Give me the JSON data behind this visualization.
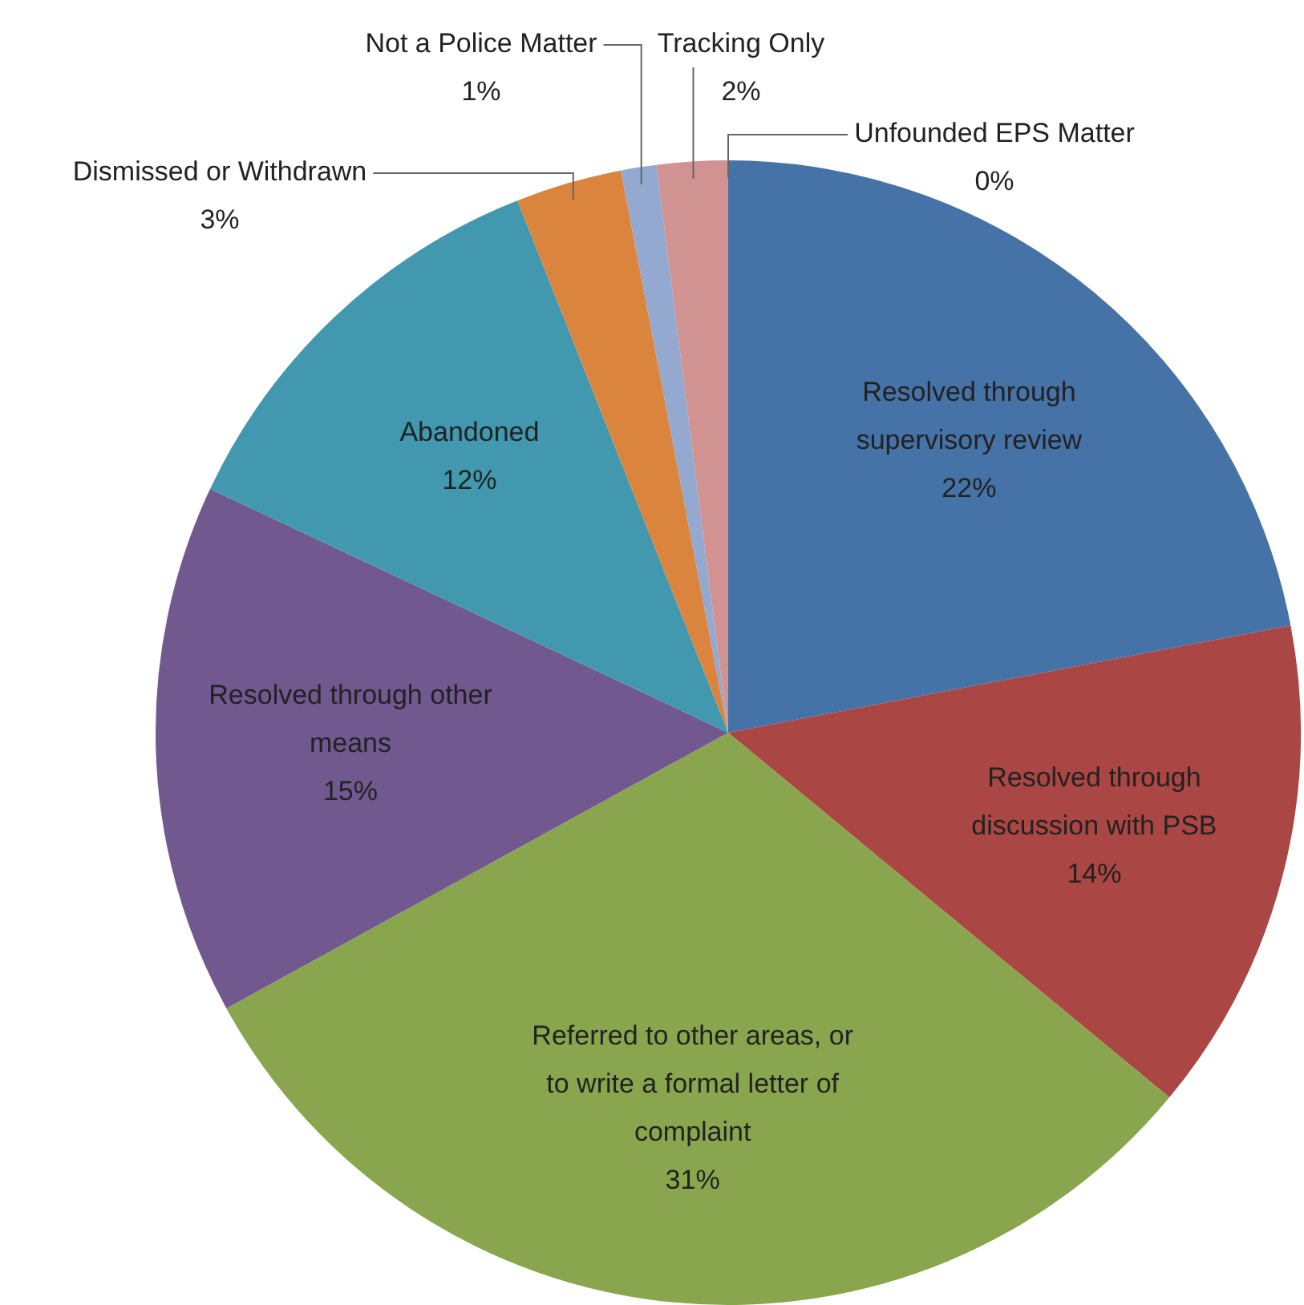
{
  "chart_data": {
    "type": "pie",
    "categories": [
      "Resolved through supervisory review",
      "Resolved through discussion with PSB",
      "Referred to other areas, or to write a formal letter of complaint",
      "Resolved through other means",
      "Abandoned",
      "Dismissed or Withdrawn",
      "Not a Police Matter",
      "Tracking Only",
      "Unfounded EPS Matter"
    ],
    "values": [
      22,
      14,
      31,
      15,
      12,
      3,
      1,
      2,
      0
    ],
    "value_labels": [
      "22%",
      "14%",
      "31%",
      "15%",
      "12%",
      "3%",
      "1%",
      "2%",
      "0%"
    ],
    "colors": [
      "#4572a7",
      "#aa4643",
      "#89a54e",
      "#71588f",
      "#4198af",
      "#db843d",
      "#93a9cf",
      "#d19392",
      "#b9cd96"
    ],
    "legend": false
  }
}
